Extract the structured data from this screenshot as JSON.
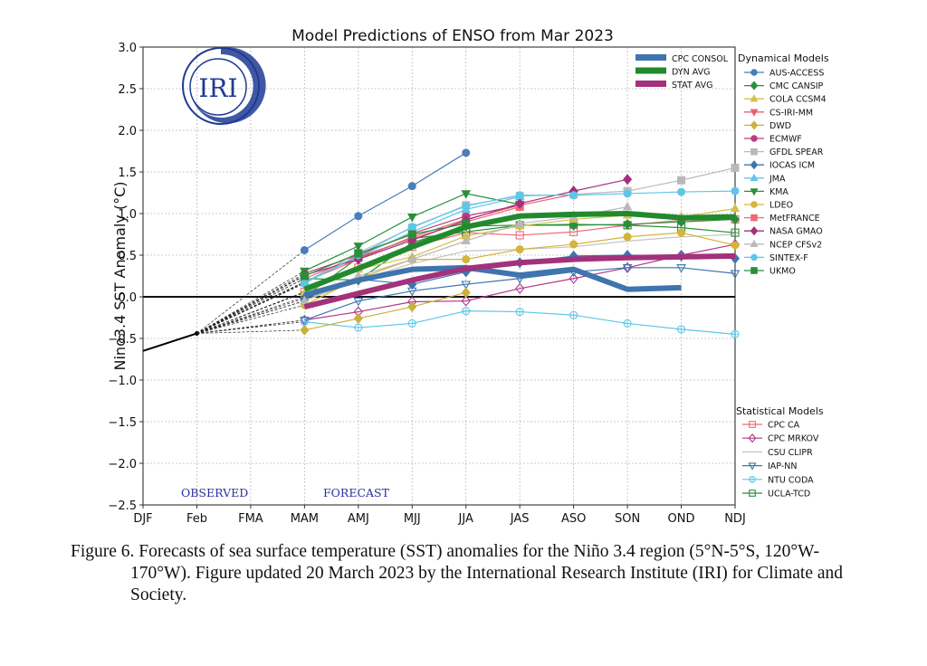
{
  "chart_data": {
    "type": "line",
    "title": "Model Predictions of ENSO from Mar 2023",
    "xlabel": "",
    "ylabel": "Nino3.4 SST Anomaly (°C)",
    "ylim": [
      -2.5,
      3.0
    ],
    "yticks": [
      -2.5,
      -2.0,
      -1.5,
      -1.0,
      -0.5,
      0.0,
      0.5,
      1.0,
      1.5,
      2.0,
      2.5,
      3.0
    ],
    "ytick_labels": [
      "−2.5",
      "−2.0",
      "−1.5",
      "−1.0",
      "−0.5",
      "0.0",
      "0.5",
      "1.0",
      "1.5",
      "2.0",
      "2.5",
      "3.0"
    ],
    "categories": [
      "DJF",
      "Feb",
      "FMA",
      "MAM",
      "AMJ",
      "MJJ",
      "JJA",
      "JAS",
      "ASO",
      "SON",
      "OND",
      "NDJ"
    ],
    "grid": true,
    "annotations": {
      "observed": "OBSERVED",
      "forecast": "FORECAST"
    },
    "logo_text": "IRI",
    "observed": {
      "name": "Observed",
      "x": [
        0,
        1
      ],
      "values": [
        -0.65,
        -0.44
      ],
      "color": "#000000"
    },
    "summary_legend_placement": "top-right-inside",
    "summary_series": [
      {
        "name": "CPC CONSOL",
        "color": "#3f74ae",
        "start": 3,
        "values": [
          0.02,
          0.2,
          0.33,
          0.35,
          0.26,
          0.33,
          0.09,
          0.11
        ]
      },
      {
        "name": "DYN AVG",
        "color": "#218a2d",
        "start": 3,
        "values": [
          0.09,
          0.34,
          0.6,
          0.84,
          0.97,
          0.99,
          1.0,
          0.95,
          0.96
        ]
      },
      {
        "name": "STAT AVG",
        "color": "#a3317b",
        "start": 3,
        "values": [
          -0.12,
          0.04,
          0.2,
          0.34,
          0.41,
          0.45,
          0.47,
          0.48,
          0.49
        ]
      }
    ],
    "dynamical_title": "Dynamical Models",
    "dynamical_models": [
      {
        "name": "AUS-ACCESS",
        "color": "#4a7dbb",
        "marker": "circle",
        "start": 3,
        "values": [
          0.56,
          0.97,
          1.33,
          1.73
        ]
      },
      {
        "name": "CMC CANSIP",
        "color": "#2a8f3a",
        "marker": "diamond",
        "start": 3,
        "values": [
          0.22,
          0.2,
          0.65,
          0.85,
          0.86,
          0.86,
          0.87,
          0.9,
          0.93
        ]
      },
      {
        "name": "COLA CCSM4",
        "color": "#d4c04a",
        "marker": "triangle-up",
        "start": 3,
        "values": [
          0.05,
          0.33,
          0.48,
          0.73,
          0.85,
          0.93,
          0.98,
          0.96,
          1.06
        ]
      },
      {
        "name": "CS-IRI-MM",
        "color": "#ee5d6f",
        "marker": "triangle-down",
        "start": 3,
        "values": [
          0.18,
          0.45,
          0.72,
          0.93,
          1.1,
          1.23
        ]
      },
      {
        "name": "DWD",
        "color": "#c9b13d",
        "marker": "diamond",
        "start": 3,
        "values": [
          -0.4,
          -0.26,
          -0.12,
          0.05
        ]
      },
      {
        "name": "ECMWF",
        "color": "#b83f86",
        "marker": "circle",
        "start": 3,
        "values": [
          0.28,
          0.5,
          0.76,
          0.97,
          1.1
        ]
      },
      {
        "name": "GFDL SPEAR",
        "color": "#b9b9b9",
        "marker": "square",
        "start": 3,
        "values": [
          0.17,
          0.53,
          0.83,
          1.1,
          1.21,
          1.23,
          1.27,
          1.4,
          1.55
        ]
      },
      {
        "name": "IOCAS ICM",
        "color": "#3f74ae",
        "marker": "diamond",
        "start": 3,
        "values": [
          -0.02,
          0.21,
          0.15,
          0.3,
          0.41,
          0.49,
          0.5,
          0.49,
          0.46
        ]
      },
      {
        "name": "JMA",
        "color": "#5ec6e8",
        "marker": "triangle-up",
        "start": 3,
        "values": [
          0.18,
          0.48,
          0.78,
          1.05,
          1.2
        ]
      },
      {
        "name": "KMA",
        "color": "#2a8f3a",
        "marker": "triangle-down",
        "start": 3,
        "values": [
          0.31,
          0.61,
          0.96,
          1.24,
          1.11
        ]
      },
      {
        "name": "LDEO",
        "color": "#d4b43a",
        "marker": "circle",
        "start": 3,
        "values": [
          -0.1,
          0.22,
          0.45,
          0.45,
          0.57,
          0.63,
          0.72,
          0.77,
          0.62
        ]
      },
      {
        "name": "MetFRANCE",
        "color": "#ee6a7a",
        "marker": "square",
        "start": 3,
        "values": [
          0.22,
          0.48,
          0.7,
          0.9,
          1.08
        ]
      },
      {
        "name": "NASA GMAO",
        "color": "#a3317b",
        "marker": "diamond",
        "start": 3,
        "values": [
          0.26,
          0.45,
          0.68,
          0.92,
          1.12,
          1.27,
          1.41
        ]
      },
      {
        "name": "NCEP CFSv2",
        "color": "#b9b9b9",
        "marker": "triangle-up",
        "start": 3,
        "values": [
          -0.05,
          0.25,
          0.45,
          0.67,
          0.88,
          0.96,
          1.08
        ]
      },
      {
        "name": "SINTEX-F",
        "color": "#5ec6e8",
        "marker": "circle",
        "start": 3,
        "values": [
          0.16,
          0.5,
          0.84,
          1.09,
          1.22,
          1.22,
          1.24,
          1.26,
          1.27
        ]
      },
      {
        "name": "UKMO",
        "color": "#2a8f3a",
        "marker": "square",
        "start": 3,
        "values": [
          0.25,
          0.52,
          0.75,
          0.88
        ]
      }
    ],
    "statistical_title": "Statistical Models",
    "statistical_models": [
      {
        "name": "CPC CA",
        "color": "#ee6a7a",
        "marker": "square-open",
        "start": 3,
        "values": [
          0.06,
          0.35,
          0.6,
          0.77,
          0.74,
          0.78,
          0.86,
          0.92,
          0.93
        ]
      },
      {
        "name": "CPC MRKOV",
        "color": "#b3378a",
        "marker": "diamond-open",
        "start": 3,
        "values": [
          -0.28,
          -0.18,
          -0.06,
          -0.05,
          0.1,
          0.22,
          0.35,
          0.5,
          0.63
        ]
      },
      {
        "name": "CSU CLIPR",
        "color": "#c4c4c4",
        "marker": "triangle-open",
        "start": 3,
        "values": [
          -0.05,
          0.2,
          0.4,
          0.55,
          0.57,
          0.6,
          0.67,
          0.72,
          0.75
        ]
      },
      {
        "name": "IAP-NN",
        "color": "#3f74ae",
        "marker": "triangle-down-open",
        "start": 3,
        "values": [
          -0.28,
          -0.05,
          0.07,
          0.15,
          0.22,
          0.3,
          0.35,
          0.35,
          0.28
        ]
      },
      {
        "name": "NTU CODA",
        "color": "#5ec6e8",
        "marker": "circle-open",
        "start": 3,
        "values": [
          -0.3,
          -0.37,
          -0.32,
          -0.17,
          -0.18,
          -0.22,
          -0.32,
          -0.39,
          -0.45
        ]
      },
      {
        "name": "UCLA-TCD",
        "color": "#2a8f3a",
        "marker": "square-open",
        "start": 3,
        "values": [
          0.0,
          0.47,
          0.7,
          0.78,
          0.86,
          0.87,
          0.86,
          0.83,
          0.77
        ]
      }
    ]
  },
  "caption": {
    "text": "Figure 6. Forecasts of sea surface temperature (SST) anomalies for the Niño 3.4 region (5°N-5°S, 120°W-170°W). Figure updated 20 March 2023 by the International Research Institute (IRI) for Climate and Society."
  }
}
